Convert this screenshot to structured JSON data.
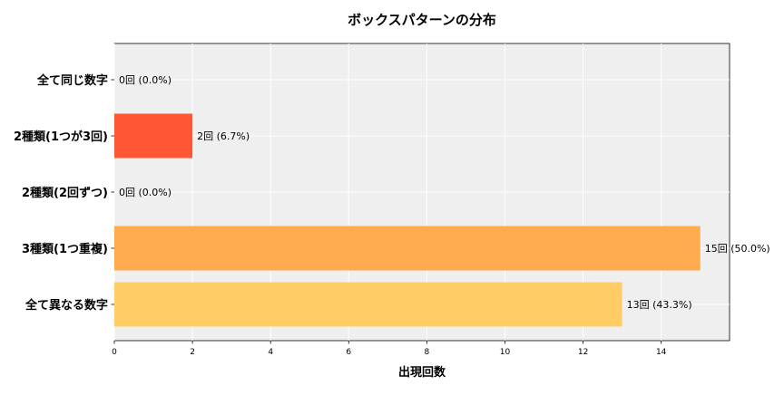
{
  "chart_data": {
    "type": "bar",
    "orientation": "horizontal",
    "title": "ボックスパターンの分布",
    "xlabel": "出現回数",
    "ylabel": "",
    "categories": [
      "全て同じ数字",
      "2種類(1つが3回)",
      "2種類(2回ずつ)",
      "3種類(1つ重複)",
      "全て異なる数字"
    ],
    "values": [
      0,
      2,
      0,
      15,
      13
    ],
    "value_labels": [
      "0回 (0.0%)",
      "2回 (6.7%)",
      "0回 (0.0%)",
      "15回 (50.0%)",
      "13回 (43.3%)"
    ],
    "bar_colors": [
      "#ff5733",
      "#ff5733",
      "#ff5733",
      "#ffaa4d",
      "#ffcc66"
    ],
    "xlim": [
      0,
      15.75
    ],
    "xticks": [
      0,
      2,
      4,
      6,
      8,
      10,
      12,
      14
    ],
    "grid": true,
    "background_color": "#efefef",
    "grid_color": "#ffffff"
  }
}
